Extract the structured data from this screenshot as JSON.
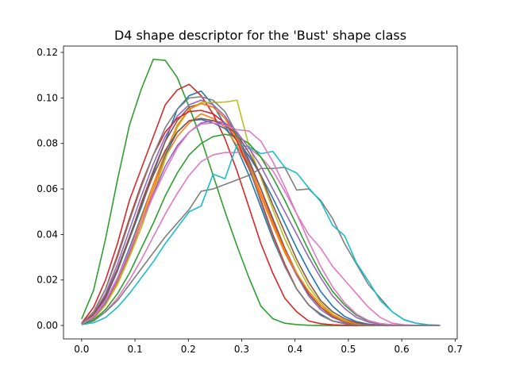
{
  "chart_data": {
    "type": "line",
    "title": "D4 shape descriptor for the 'Bust' shape class",
    "xlabel": "",
    "ylabel": "",
    "xlim": [
      -0.034,
      0.704
    ],
    "ylim": [
      -0.0059,
      0.1228
    ],
    "xticks": [
      "0.0",
      "0.1",
      "0.2",
      "0.3",
      "0.4",
      "0.5",
      "0.6",
      "0.7"
    ],
    "yticks": [
      "0.00",
      "0.02",
      "0.04",
      "0.06",
      "0.08",
      "0.10",
      "0.12"
    ],
    "grid": false,
    "x": [
      0.0,
      0.0224,
      0.0448,
      0.0672,
      0.0896,
      0.112,
      0.1344,
      0.1568,
      0.1792,
      0.2016,
      0.224,
      0.2464,
      0.2688,
      0.2912,
      0.3136,
      0.336,
      0.3584,
      0.3808,
      0.4032,
      0.4256,
      0.448,
      0.4704,
      0.4928,
      0.5152,
      0.5376,
      0.56,
      0.5824,
      0.6048,
      0.6272,
      0.6496,
      0.672
    ],
    "series": [
      {
        "color": "#1f77b4",
        "values": [
          0.0006,
          0.004,
          0.012,
          0.024,
          0.038,
          0.052,
          0.067,
          0.081,
          0.095,
          0.101,
          0.103,
          0.097,
          0.088,
          0.078,
          0.066,
          0.052,
          0.038,
          0.026,
          0.016,
          0.009,
          0.005,
          0.002,
          0.001,
          0.0004,
          0.0002,
          0.0001,
          0.0,
          0.0,
          0.0,
          0.0,
          0.0
        ]
      },
      {
        "color": "#ff7f0e",
        "values": [
          0.0005,
          0.003,
          0.009,
          0.019,
          0.031,
          0.045,
          0.06,
          0.074,
          0.083,
          0.089,
          0.093,
          0.091,
          0.087,
          0.079,
          0.069,
          0.057,
          0.044,
          0.032,
          0.022,
          0.014,
          0.008,
          0.004,
          0.002,
          0.001,
          0.0004,
          0.0002,
          0.0001,
          0.0,
          0.0,
          0.0,
          0.0
        ]
      },
      {
        "color": "#2ca02c",
        "values": [
          0.0029,
          0.0155,
          0.038,
          0.064,
          0.088,
          0.104,
          0.117,
          0.1165,
          0.109,
          0.096,
          0.082,
          0.066,
          0.05,
          0.035,
          0.021,
          0.0085,
          0.003,
          0.001,
          0.0004,
          0.0001,
          0.0,
          0.0,
          0.0,
          0.0,
          0.0,
          0.0,
          0.0,
          0.0,
          0.0,
          0.0,
          0.0
        ]
      },
      {
        "color": "#d62728",
        "values": [
          0.001,
          0.008,
          0.02,
          0.036,
          0.055,
          0.069,
          0.083,
          0.097,
          0.1035,
          0.106,
          0.101,
          0.093,
          0.082,
          0.068,
          0.052,
          0.036,
          0.023,
          0.012,
          0.006,
          0.002,
          0.0008,
          0.0003,
          0.0001,
          0.0,
          0.0,
          0.0,
          0.0,
          0.0,
          0.0,
          0.0,
          0.0
        ]
      },
      {
        "color": "#9467bd",
        "values": [
          0.0008,
          0.005,
          0.014,
          0.027,
          0.042,
          0.057,
          0.071,
          0.083,
          0.092,
          0.097,
          0.099,
          0.097,
          0.092,
          0.084,
          0.073,
          0.06,
          0.046,
          0.033,
          0.022,
          0.013,
          0.007,
          0.0035,
          0.0015,
          0.0006,
          0.0002,
          0.0001,
          0.0,
          0.0,
          0.0,
          0.0,
          0.0
        ]
      },
      {
        "color": "#8c564b",
        "values": [
          0.0007,
          0.0045,
          0.0125,
          0.0245,
          0.0385,
          0.054,
          0.068,
          0.081,
          0.09,
          0.096,
          0.0975,
          0.096,
          0.091,
          0.083,
          0.072,
          0.06,
          0.047,
          0.034,
          0.023,
          0.014,
          0.008,
          0.004,
          0.0018,
          0.0007,
          0.0003,
          0.0001,
          0.0,
          0.0,
          0.0,
          0.0,
          0.0
        ]
      },
      {
        "color": "#e377c2",
        "values": [
          0.0005,
          0.002,
          0.006,
          0.012,
          0.02,
          0.029,
          0.039,
          0.049,
          0.058,
          0.066,
          0.072,
          0.075,
          0.076,
          0.076,
          0.078,
          0.074,
          0.068,
          0.059,
          0.049,
          0.04,
          0.034,
          0.026,
          0.02,
          0.014,
          0.008,
          0.0035,
          0.001,
          0.0003,
          0.0001,
          0.0,
          0.0
        ]
      },
      {
        "color": "#7f7f7f",
        "values": [
          0.0004,
          0.002,
          0.006,
          0.011,
          0.018,
          0.025,
          0.032,
          0.039,
          0.045,
          0.051,
          0.059,
          0.06,
          0.062,
          0.064,
          0.066,
          0.069,
          0.069,
          0.0695,
          0.0595,
          0.06,
          0.055,
          0.047,
          0.036,
          0.027,
          0.018,
          0.012,
          0.006,
          0.0025,
          0.001,
          0.0003,
          0.0001
        ]
      },
      {
        "color": "#bcbd22",
        "values": [
          0.0006,
          0.003,
          0.009,
          0.018,
          0.03,
          0.043,
          0.058,
          0.073,
          0.087,
          0.095,
          0.098,
          0.098,
          0.0982,
          0.099,
          0.079,
          0.065,
          0.051,
          0.038,
          0.027,
          0.017,
          0.01,
          0.005,
          0.0023,
          0.001,
          0.0004,
          0.0002,
          0.0001,
          0.0,
          0.0,
          0.0,
          0.0
        ]
      },
      {
        "color": "#17becf",
        "values": [
          0.0004,
          0.0012,
          0.0035,
          0.008,
          0.014,
          0.021,
          0.028,
          0.036,
          0.043,
          0.05,
          0.0525,
          0.0665,
          0.0645,
          0.0795,
          0.0785,
          0.0755,
          0.0765,
          0.0695,
          0.067,
          0.0605,
          0.0545,
          0.044,
          0.0395,
          0.0275,
          0.0195,
          0.011,
          0.006,
          0.0025,
          0.001,
          0.0003,
          0.0001
        ]
      },
      {
        "color": "#1f77b4",
        "values": [
          0.0005,
          0.0035,
          0.01,
          0.021,
          0.034,
          0.048,
          0.062,
          0.075,
          0.085,
          0.09,
          0.0905,
          0.089,
          0.0865,
          0.0815,
          0.0745,
          0.066,
          0.056,
          0.045,
          0.034,
          0.024,
          0.015,
          0.0085,
          0.004,
          0.0017,
          0.0006,
          0.0002,
          0.0001,
          0.0,
          0.0,
          0.0,
          0.0
        ]
      },
      {
        "color": "#ff7f0e",
        "values": [
          0.0005,
          0.0035,
          0.01,
          0.02,
          0.033,
          0.047,
          0.062,
          0.076,
          0.088,
          0.095,
          0.0975,
          0.096,
          0.091,
          0.082,
          0.071,
          0.058,
          0.045,
          0.033,
          0.023,
          0.015,
          0.009,
          0.0045,
          0.002,
          0.0008,
          0.0003,
          0.0001,
          0.0,
          0.0,
          0.0,
          0.0,
          0.0
        ]
      },
      {
        "color": "#2ca02c",
        "values": [
          0.0005,
          0.0025,
          0.007,
          0.014,
          0.023,
          0.034,
          0.045,
          0.057,
          0.067,
          0.075,
          0.08,
          0.083,
          0.084,
          0.083,
          0.08,
          0.074,
          0.065,
          0.055,
          0.044,
          0.033,
          0.023,
          0.015,
          0.009,
          0.0045,
          0.002,
          0.0008,
          0.0003,
          0.0001,
          0.0,
          0.0,
          0.0
        ]
      },
      {
        "color": "#d62728",
        "values": [
          0.0008,
          0.006,
          0.016,
          0.031,
          0.047,
          0.062,
          0.075,
          0.085,
          0.091,
          0.094,
          0.0945,
          0.093,
          0.089,
          0.081,
          0.069,
          0.055,
          0.04,
          0.027,
          0.016,
          0.009,
          0.0045,
          0.002,
          0.0008,
          0.0003,
          0.0001,
          0.0,
          0.0,
          0.0,
          0.0,
          0.0,
          0.0
        ]
      },
      {
        "color": "#9467bd",
        "values": [
          0.0006,
          0.0035,
          0.01,
          0.02,
          0.032,
          0.045,
          0.058,
          0.07,
          0.079,
          0.085,
          0.089,
          0.09,
          0.089,
          0.085,
          0.078,
          0.07,
          0.06,
          0.05,
          0.04,
          0.03,
          0.021,
          0.013,
          0.0075,
          0.0035,
          0.0015,
          0.0006,
          0.0002,
          0.0001,
          0.0,
          0.0,
          0.0
        ]
      },
      {
        "color": "#8c564b",
        "values": [
          0.0007,
          0.005,
          0.013,
          0.025,
          0.039,
          0.053,
          0.066,
          0.077,
          0.085,
          0.09,
          0.091,
          0.09,
          0.088,
          0.084,
          0.076,
          0.066,
          0.053,
          0.041,
          0.029,
          0.019,
          0.011,
          0.006,
          0.003,
          0.0012,
          0.0005,
          0.0002,
          0.0001,
          0.0,
          0.0,
          0.0,
          0.0
        ]
      },
      {
        "color": "#e377c2",
        "values": [
          0.0006,
          0.004,
          0.011,
          0.021,
          0.033,
          0.045,
          0.057,
          0.068,
          0.078,
          0.085,
          0.0885,
          0.089,
          0.088,
          0.086,
          0.0855,
          0.081,
          0.072,
          0.061,
          0.049,
          0.037,
          0.026,
          0.017,
          0.01,
          0.005,
          0.0022,
          0.0009,
          0.0003,
          0.0001,
          0.0,
          0.0,
          0.0
        ]
      },
      {
        "color": "#7f7f7f",
        "values": [
          0.0008,
          0.006,
          0.016,
          0.03,
          0.046,
          0.061,
          0.075,
          0.087,
          0.095,
          0.1,
          0.1005,
          0.099,
          0.094,
          0.084,
          0.07,
          0.054,
          0.039,
          0.026,
          0.016,
          0.009,
          0.0045,
          0.002,
          0.0008,
          0.0003,
          0.0001,
          0.0,
          0.0,
          0.0,
          0.0,
          0.0,
          0.0
        ]
      }
    ]
  }
}
